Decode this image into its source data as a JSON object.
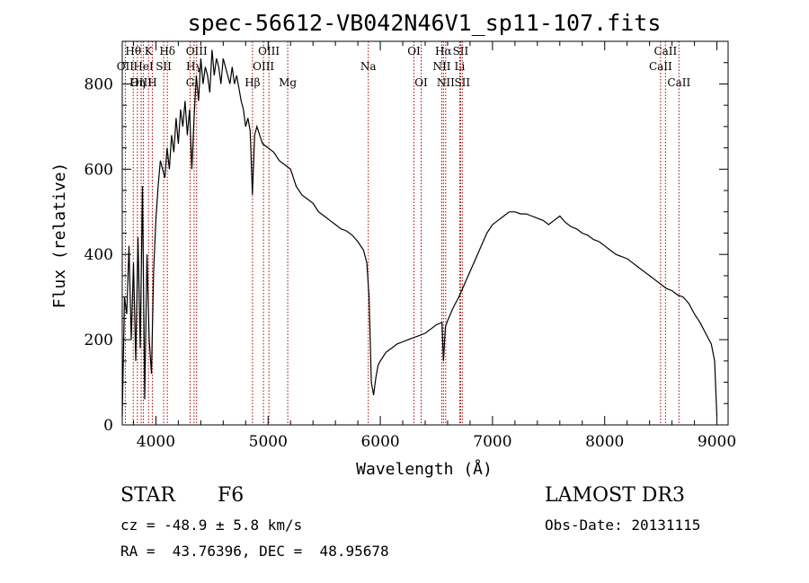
{
  "chart_data": {
    "type": "line",
    "title": "spec-56612-VB042N46V1_sp11-107.fits",
    "xlabel": "Wavelength (Å)",
    "ylabel": "Flux (relative)",
    "xlim": [
      3700,
      9100
    ],
    "ylim": [
      0,
      900
    ],
    "x_ticks": [
      4000,
      5000,
      6000,
      7000,
      8000,
      9000
    ],
    "y_ticks": [
      0,
      200,
      400,
      600,
      800
    ],
    "series": [
      {
        "name": "flux",
        "x": [
          3700,
          3720,
          3740,
          3760,
          3780,
          3800,
          3820,
          3840,
          3860,
          3880,
          3900,
          3920,
          3940,
          3960,
          3980,
          4000,
          4020,
          4040,
          4060,
          4080,
          4100,
          4120,
          4140,
          4160,
          4180,
          4200,
          4220,
          4240,
          4260,
          4280,
          4300,
          4320,
          4340,
          4360,
          4380,
          4400,
          4420,
          4440,
          4460,
          4480,
          4500,
          4520,
          4540,
          4560,
          4580,
          4600,
          4620,
          4640,
          4660,
          4680,
          4700,
          4720,
          4740,
          4760,
          4780,
          4800,
          4820,
          4840,
          4860,
          4880,
          4900,
          4950,
          5000,
          5050,
          5100,
          5150,
          5200,
          5250,
          5300,
          5350,
          5400,
          5450,
          5500,
          5550,
          5600,
          5650,
          5700,
          5750,
          5800,
          5850,
          5880,
          5900,
          5920,
          5940,
          5960,
          5980,
          6000,
          6050,
          6100,
          6150,
          6200,
          6250,
          6300,
          6350,
          6400,
          6450,
          6500,
          6550,
          6563,
          6580,
          6600,
          6650,
          6700,
          6750,
          6800,
          6850,
          6900,
          6950,
          7000,
          7050,
          7100,
          7150,
          7200,
          7250,
          7300,
          7350,
          7400,
          7450,
          7500,
          7550,
          7600,
          7650,
          7700,
          7750,
          7800,
          7850,
          7900,
          7950,
          8000,
          8050,
          8100,
          8150,
          8200,
          8250,
          8300,
          8350,
          8400,
          8450,
          8500,
          8550,
          8600,
          8650,
          8700,
          8750,
          8800,
          8850,
          8900,
          8950,
          8980,
          9000
        ],
        "y": [
          20,
          300,
          260,
          420,
          200,
          380,
          150,
          440,
          180,
          560,
          60,
          400,
          200,
          120,
          360,
          480,
          560,
          620,
          600,
          580,
          650,
          600,
          680,
          640,
          720,
          660,
          740,
          700,
          760,
          680,
          740,
          600,
          720,
          820,
          760,
          860,
          800,
          840,
          820,
          780,
          880,
          820,
          860,
          840,
          800,
          860,
          840,
          820,
          800,
          840,
          800,
          820,
          790,
          760,
          740,
          700,
          720,
          690,
          540,
          680,
          700,
          660,
          650,
          640,
          620,
          610,
          600,
          560,
          540,
          530,
          520,
          500,
          490,
          480,
          470,
          460,
          455,
          445,
          430,
          410,
          380,
          300,
          100,
          70,
          110,
          140,
          150,
          170,
          180,
          190,
          195,
          200,
          205,
          210,
          215,
          225,
          235,
          240,
          150,
          230,
          245,
          275,
          300,
          330,
          360,
          390,
          420,
          450,
          470,
          480,
          490,
          500,
          500,
          495,
          495,
          490,
          485,
          480,
          470,
          480,
          490,
          475,
          465,
          460,
          450,
          445,
          435,
          430,
          420,
          410,
          400,
          395,
          390,
          380,
          370,
          360,
          350,
          340,
          330,
          320,
          315,
          305,
          300,
          285,
          260,
          240,
          215,
          190,
          150,
          20
        ]
      }
    ],
    "spectral_lines": [
      {
        "name": "Hθ",
        "wavelength": 3798,
        "row": 1
      },
      {
        "name": "OII",
        "wavelength": 3727,
        "row": 2
      },
      {
        "name": "OIII",
        "wavelength": 3869,
        "row": 3
      },
      {
        "name": "K",
        "wavelength": 3934,
        "row": 1
      },
      {
        "name": "HeI",
        "wavelength": 3889,
        "row": 2
      },
      {
        "name": "Hη",
        "wavelength": 3835,
        "row": 3
      },
      {
        "name": "Hδ",
        "wavelength": 4102,
        "row": 1
      },
      {
        "name": "SII",
        "wavelength": 4069,
        "row": 2
      },
      {
        "name": "H",
        "wavelength": 3968,
        "row": 3
      },
      {
        "name": "OIII",
        "wavelength": 4363,
        "row": 1
      },
      {
        "name": "Hγ",
        "wavelength": 4340,
        "row": 2
      },
      {
        "name": "G",
        "wavelength": 4305,
        "row": 3
      },
      {
        "name": "OIII",
        "wavelength": 5007,
        "row": 1
      },
      {
        "name": "OIII",
        "wavelength": 4959,
        "row": 2
      },
      {
        "name": "Hβ",
        "wavelength": 4861,
        "row": 3
      },
      {
        "name": "Mg",
        "wavelength": 5175,
        "row": 3
      },
      {
        "name": "Na",
        "wavelength": 5893,
        "row": 2
      },
      {
        "name": "OI",
        "wavelength": 6300,
        "row": 1
      },
      {
        "name": "OI",
        "wavelength": 6364,
        "row": 3
      },
      {
        "name": "Hα",
        "wavelength": 6563,
        "row": 1
      },
      {
        "name": "SII",
        "wavelength": 6716,
        "row": 1
      },
      {
        "name": "NII",
        "wavelength": 6548,
        "row": 2
      },
      {
        "name": "Li",
        "wavelength": 6708,
        "row": 2
      },
      {
        "name": "NII",
        "wavelength": 6583,
        "row": 3
      },
      {
        "name": "SII",
        "wavelength": 6731,
        "row": 3
      },
      {
        "name": "CaII",
        "wavelength": 8542,
        "row": 1
      },
      {
        "name": "CaII",
        "wavelength": 8498,
        "row": 2
      },
      {
        "name": "CaII",
        "wavelength": 8662,
        "row": 3
      }
    ],
    "grid": false,
    "legend": "none"
  },
  "info": {
    "object_class": "STAR",
    "subclass": "F6",
    "survey": "LAMOST DR3",
    "redshift": "cz = -48.9 ± 5.8 km/s",
    "obs_date": "Obs-Date: 20131115",
    "coords": "RA =  43.76396, DEC =  48.95678"
  },
  "colors": {
    "line": "#000000",
    "marker": "#aa0000",
    "background": "#ffffff"
  }
}
